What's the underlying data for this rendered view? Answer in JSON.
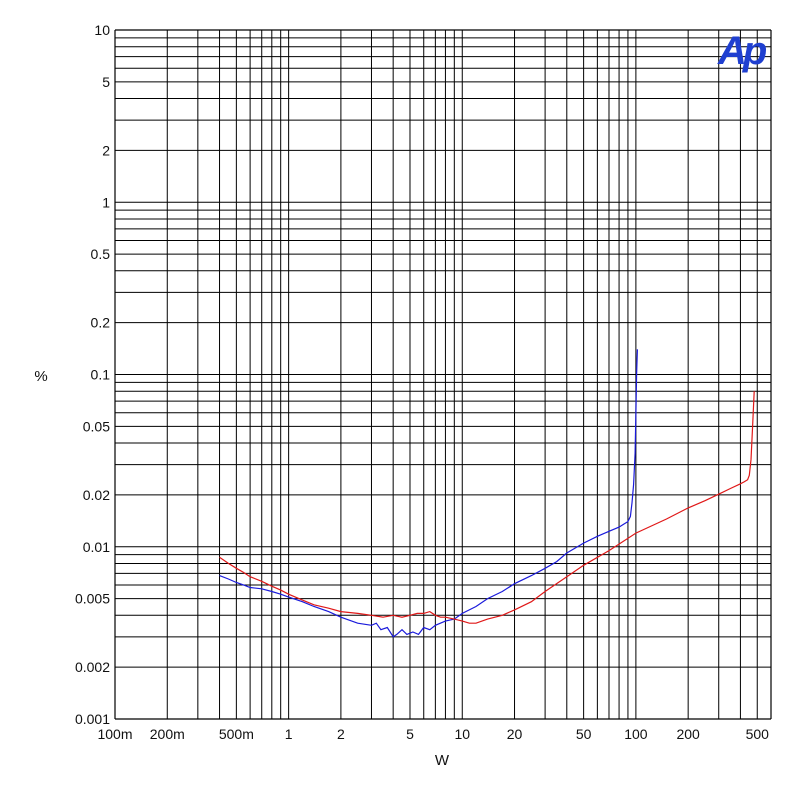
{
  "logo": {
    "text": "Ap",
    "color": "#1f3fd0"
  },
  "chart_data": {
    "type": "line",
    "xlabel": "W",
    "ylabel": "%",
    "x_scale": "log",
    "y_scale": "log",
    "xlim": [
      0.1,
      600
    ],
    "ylim": [
      0.001,
      10
    ],
    "grid": true,
    "x_ticks": [
      {
        "value": 0.1,
        "label": "100m"
      },
      {
        "value": 0.2,
        "label": "200m"
      },
      {
        "value": 0.5,
        "label": "500m"
      },
      {
        "value": 1,
        "label": "1"
      },
      {
        "value": 2,
        "label": "2"
      },
      {
        "value": 5,
        "label": "5"
      },
      {
        "value": 10,
        "label": "10"
      },
      {
        "value": 20,
        "label": "20"
      },
      {
        "value": 50,
        "label": "50"
      },
      {
        "value": 100,
        "label": "100"
      },
      {
        "value": 200,
        "label": "200"
      },
      {
        "value": 500,
        "label": "500"
      }
    ],
    "y_ticks": [
      {
        "value": 0.001,
        "label": "0.001"
      },
      {
        "value": 0.002,
        "label": "0.002"
      },
      {
        "value": 0.005,
        "label": "0.005"
      },
      {
        "value": 0.01,
        "label": "0.01"
      },
      {
        "value": 0.02,
        "label": "0.02"
      },
      {
        "value": 0.05,
        "label": "0.05"
      },
      {
        "value": 0.1,
        "label": "0.1"
      },
      {
        "value": 0.2,
        "label": "0.2"
      },
      {
        "value": 0.5,
        "label": "0.5"
      },
      {
        "value": 1,
        "label": "1"
      },
      {
        "value": 2,
        "label": "2"
      },
      {
        "value": 5,
        "label": "5"
      },
      {
        "value": 10,
        "label": "10"
      }
    ],
    "series": [
      {
        "color": "#1a1adb",
        "x": [
          0.4,
          0.45,
          0.5,
          0.55,
          0.6,
          0.7,
          0.8,
          0.9,
          1.0,
          1.2,
          1.4,
          1.7,
          2.0,
          2.5,
          3.0,
          3.2,
          3.4,
          3.7,
          4.0,
          4.2,
          4.5,
          4.8,
          5.2,
          5.6,
          6.0,
          6.5,
          7.0,
          8.0,
          9.0,
          10,
          12,
          14,
          17,
          20,
          25,
          30,
          35,
          40,
          50,
          60,
          70,
          80,
          85,
          90,
          93,
          95,
          97,
          99,
          100,
          101,
          102
        ],
        "y": [
          0.0068,
          0.0065,
          0.0062,
          0.006,
          0.0058,
          0.0057,
          0.0055,
          0.0053,
          0.0051,
          0.0048,
          0.0045,
          0.0042,
          0.0039,
          0.0036,
          0.0035,
          0.0036,
          0.0033,
          0.0034,
          0.003,
          0.0031,
          0.0033,
          0.0031,
          0.0032,
          0.0031,
          0.0034,
          0.0033,
          0.0035,
          0.0037,
          0.0038,
          0.0041,
          0.0045,
          0.005,
          0.0055,
          0.0061,
          0.0068,
          0.0075,
          0.0082,
          0.0092,
          0.0105,
          0.0115,
          0.0123,
          0.013,
          0.0135,
          0.014,
          0.015,
          0.018,
          0.023,
          0.035,
          0.06,
          0.1,
          0.14
        ]
      },
      {
        "color": "#e01818",
        "x": [
          0.4,
          0.45,
          0.5,
          0.55,
          0.6,
          0.7,
          0.8,
          0.9,
          1.0,
          1.2,
          1.4,
          1.7,
          2.0,
          2.5,
          3.0,
          3.5,
          4.0,
          4.5,
          5.0,
          5.5,
          6.0,
          6.5,
          7.0,
          7.5,
          8.0,
          9.0,
          10,
          11,
          12,
          14,
          17,
          20,
          25,
          30,
          40,
          50,
          70,
          100,
          150,
          200,
          250,
          300,
          350,
          400,
          420,
          440,
          450,
          460,
          470,
          480
        ],
        "y": [
          0.0087,
          0.008,
          0.0075,
          0.0071,
          0.0067,
          0.0063,
          0.0059,
          0.0056,
          0.0053,
          0.0049,
          0.0046,
          0.0044,
          0.0042,
          0.0041,
          0.004,
          0.0039,
          0.004,
          0.0039,
          0.004,
          0.0041,
          0.0041,
          0.0042,
          0.004,
          0.0039,
          0.0039,
          0.0038,
          0.0037,
          0.0036,
          0.0036,
          0.0038,
          0.004,
          0.0043,
          0.0048,
          0.0055,
          0.0067,
          0.0078,
          0.0095,
          0.012,
          0.0145,
          0.0168,
          0.0185,
          0.0202,
          0.0218,
          0.0232,
          0.0238,
          0.0245,
          0.026,
          0.032,
          0.05,
          0.08
        ]
      }
    ]
  }
}
